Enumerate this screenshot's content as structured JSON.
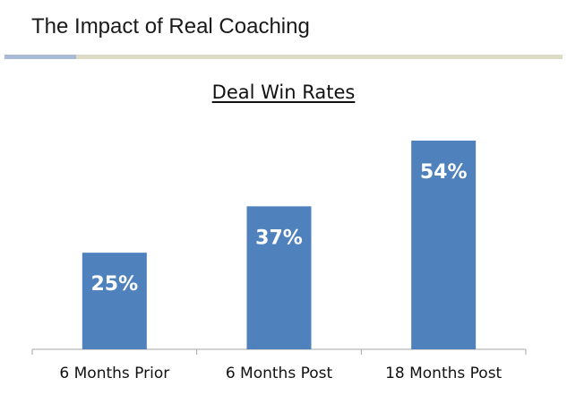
{
  "slide": {
    "title": "The Impact of Real Coaching"
  },
  "colors": {
    "bar": "#4f81bd",
    "divider": "#dcdcc6",
    "divider_accent": "#a9bad4",
    "axis": "#a6a6a6"
  },
  "chart_data": {
    "type": "bar",
    "title": "Deal Win Rates",
    "categories": [
      "6 Months Prior",
      "6 Months Post",
      "18 Months Post"
    ],
    "values": [
      25,
      37,
      54
    ],
    "data_labels": [
      "25%",
      "37%",
      "54%"
    ],
    "ylim": [
      0,
      54
    ],
    "grid": false,
    "legend": "none"
  }
}
